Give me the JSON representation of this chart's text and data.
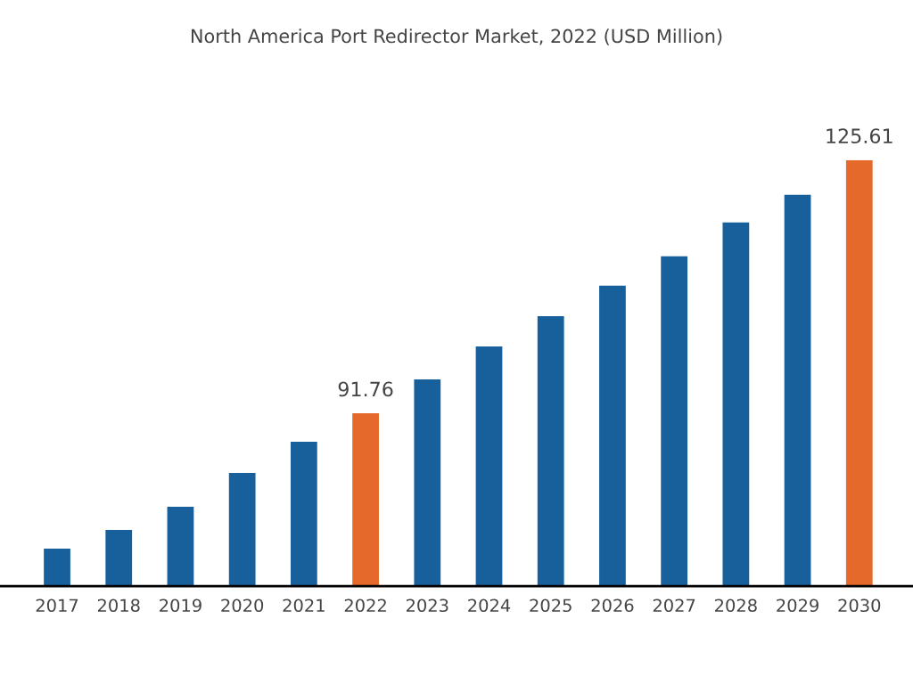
{
  "chart_data": {
    "type": "bar",
    "title": "North America Port Redirector Market, 2022 (USD Million)",
    "categories": [
      "2017",
      "2018",
      "2019",
      "2020",
      "2021",
      "2022",
      "2023",
      "2024",
      "2025",
      "2026",
      "2027",
      "2028",
      "2029",
      "2030"
    ],
    "values": [
      73.65,
      76.15,
      79.25,
      83.78,
      87.95,
      91.76,
      96.29,
      100.7,
      104.75,
      108.81,
      112.74,
      117.27,
      120.96,
      125.61
    ],
    "colors": [
      "#17609c",
      "#17609c",
      "#17609c",
      "#17609c",
      "#17609c",
      "#e5692a",
      "#17609c",
      "#17609c",
      "#17609c",
      "#17609c",
      "#17609c",
      "#17609c",
      "#17609c",
      "#e5692a"
    ],
    "value_labels": [
      null,
      null,
      null,
      null,
      null,
      "91.76",
      null,
      null,
      null,
      null,
      null,
      null,
      null,
      "125.61"
    ],
    "grid": false,
    "legend": false
  }
}
